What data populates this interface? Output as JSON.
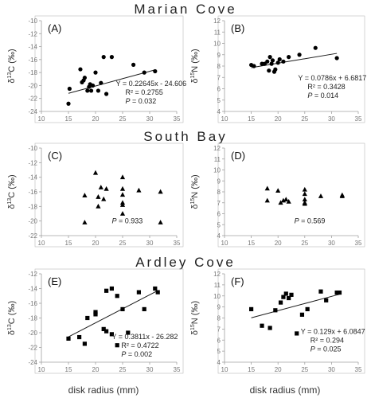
{
  "site_titles": [
    "Marian Cove",
    "South Bay",
    "Ardley Cove"
  ],
  "x_axis_label": "disk radius (mm)",
  "chart_data": [
    {
      "panel": "(A)",
      "type": "scatter",
      "site": "Marian Cove",
      "ylabel_base": "δ",
      "ylabel_sup": "13",
      "ylabel_rest": "C (‰)",
      "xlim": [
        10,
        35
      ],
      "xticks": [
        10,
        15,
        20,
        25,
        30,
        35
      ],
      "ylim": [
        -24,
        -10
      ],
      "yticks": [
        -10,
        -12,
        -14,
        -16,
        -18,
        -20,
        -22,
        -24
      ],
      "marker": "circle",
      "ylabel_visible": true,
      "xlabel_visible": false,
      "x": [
        15,
        15.2,
        17.2,
        17.5,
        17.8,
        18,
        18.5,
        18.8,
        19,
        19.2,
        19.5,
        20,
        20.5,
        21,
        21.5,
        22,
        23,
        27,
        29,
        31
      ],
      "y": [
        -22.8,
        -20.5,
        -17.5,
        -19.5,
        -19.2,
        -18.8,
        -20.8,
        -20.2,
        -19.8,
        -20.8,
        -20,
        -18,
        -20.8,
        -19.6,
        -15.6,
        -21.3,
        -15.6,
        -16.8,
        -18,
        -17.8
      ],
      "fit": {
        "slope": 0.22645,
        "intercept": -24.606
      },
      "annotations": {
        "equation": "Y = 0.22645x - 24.606",
        "r2_prefix": "R² = ",
        "r2_value": "0.2755",
        "p_prefix": "P",
        "p_rest": " = 0.032"
      }
    },
    {
      "panel": "(B)",
      "type": "scatter",
      "site": "Marian Cove",
      "ylabel_base": "δ",
      "ylabel_sup": "15",
      "ylabel_rest": "N (‰)",
      "xlim": [
        10,
        35
      ],
      "xticks": [
        10,
        15,
        20,
        25,
        30,
        35
      ],
      "ylim": [
        4,
        12
      ],
      "yticks": [
        4,
        5,
        6,
        7,
        8,
        9,
        10,
        11,
        12
      ],
      "marker": "circle",
      "ylabel_visible": true,
      "xlabel_visible": false,
      "x": [
        15,
        15.5,
        17,
        17.5,
        18,
        18.3,
        18.5,
        18.8,
        19,
        19.3,
        19.5,
        20,
        20.3,
        21,
        22,
        24,
        27,
        31
      ],
      "y": [
        8.1,
        8,
        8.2,
        8.2,
        8.4,
        7.6,
        8.8,
        8.2,
        8.5,
        7.5,
        7.7,
        8.3,
        8.6,
        8.4,
        8.8,
        9,
        9.6,
        8.7
      ],
      "fit": {
        "slope": 0.0786,
        "intercept": 6.6817
      },
      "annotations": {
        "equation": "Y = 0.0786x + 6.6817",
        "r2_prefix": "R² = ",
        "r2_value": "0.3428",
        "p_prefix": "P",
        "p_rest": " = 0.014"
      }
    },
    {
      "panel": "(C)",
      "type": "scatter",
      "site": "South Bay",
      "ylabel_base": "δ",
      "ylabel_sup": "13",
      "ylabel_rest": "C (‰)",
      "xlim": [
        10,
        35
      ],
      "xticks": [
        10,
        15,
        20,
        25,
        30,
        35
      ],
      "ylim": [
        -22,
        -10
      ],
      "yticks": [
        -10,
        -12,
        -14,
        -16,
        -18,
        -20,
        -22
      ],
      "marker": "triangle",
      "ylabel_visible": true,
      "xlabel_visible": false,
      "x": [
        18,
        18,
        20,
        20.5,
        20.5,
        21,
        21.5,
        22,
        25,
        25,
        25,
        25,
        25,
        25,
        28,
        32,
        32
      ],
      "y": [
        -16.5,
        -20.2,
        -13.4,
        -16.7,
        -18,
        -15.4,
        -17,
        -15.6,
        -14,
        -15.6,
        -16.4,
        -17.5,
        -17.8,
        -19,
        -15.8,
        -16,
        -20.2
      ],
      "fit": null,
      "annotations": {
        "equation": "",
        "r2_prefix": "",
        "r2_value": "",
        "p_prefix": "P",
        "p_rest": " = 0.933"
      }
    },
    {
      "panel": "(D)",
      "type": "scatter",
      "site": "South Bay",
      "ylabel_base": "δ",
      "ylabel_sup": "15",
      "ylabel_rest": "N (‰)",
      "xlim": [
        10,
        35
      ],
      "xticks": [
        10,
        15,
        20,
        25,
        30,
        35
      ],
      "ylim": [
        4,
        12
      ],
      "yticks": [
        4,
        5,
        6,
        7,
        8,
        9,
        10,
        11,
        12
      ],
      "marker": "triangle",
      "ylabel_visible": true,
      "xlabel_visible": false,
      "x": [
        18,
        18,
        20,
        20.5,
        21,
        21.5,
        22,
        25,
        25,
        25,
        25,
        25,
        28,
        32,
        32
      ],
      "y": [
        8.3,
        7.2,
        8.1,
        7,
        7.2,
        7.3,
        7.1,
        8.2,
        7.8,
        7.3,
        7.0,
        6.9,
        7.6,
        7.6,
        7.7
      ],
      "fit": null,
      "annotations": {
        "equation": "",
        "r2_prefix": "",
        "r2_value": "",
        "p_prefix": "P",
        "p_rest": " = 0.569"
      }
    },
    {
      "panel": "(E)",
      "type": "scatter",
      "site": "Ardley Cove",
      "ylabel_base": "δ",
      "ylabel_sup": "13",
      "ylabel_rest": "C (‰)",
      "xlim": [
        10,
        35
      ],
      "xticks": [
        10,
        15,
        20,
        25,
        30,
        35
      ],
      "ylim": [
        -24,
        -12
      ],
      "yticks": [
        -12,
        -14,
        -16,
        -18,
        -20,
        -22,
        -24
      ],
      "marker": "square",
      "ylabel_visible": true,
      "xlabel_visible": true,
      "x": [
        15,
        17,
        18,
        18.5,
        20,
        20,
        21.5,
        22,
        22,
        23,
        23,
        24,
        24,
        25,
        26,
        28,
        29,
        31,
        31.5
      ],
      "y": [
        -20.8,
        -20.6,
        -21.5,
        -18,
        -17.5,
        -17.2,
        -19.5,
        -14.3,
        -19.8,
        -14,
        -20.2,
        -15,
        -21.7,
        -16.8,
        -20,
        -14.5,
        -16.8,
        -14,
        -14.5
      ],
      "fit": {
        "slope": 0.3811,
        "intercept": -26.282
      },
      "annotations": {
        "equation": "Y = 0.3811x - 26.282",
        "r2_prefix": "R² = ",
        "r2_value": "0.4722",
        "p_prefix": "P",
        "p_rest": " = 0.002"
      }
    },
    {
      "panel": "(F)",
      "type": "scatter",
      "site": "Ardley Cove",
      "ylabel_base": "δ",
      "ylabel_sup": "15",
      "ylabel_rest": "N (‰)",
      "xlim": [
        10,
        35
      ],
      "xticks": [
        10,
        15,
        20,
        25,
        30,
        35
      ],
      "ylim": [
        4,
        12
      ],
      "yticks": [
        4,
        5,
        6,
        7,
        8,
        9,
        10,
        11,
        12
      ],
      "marker": "square",
      "ylabel_visible": true,
      "xlabel_visible": true,
      "x": [
        15,
        17,
        18.5,
        19.5,
        20.5,
        21,
        21.5,
        22,
        22.5,
        23.5,
        24.5,
        25.5,
        28,
        29,
        31,
        31.5
      ],
      "y": [
        8.8,
        7.3,
        7.1,
        8.7,
        9.4,
        9.9,
        10.2,
        9.8,
        10.1,
        6.6,
        8.3,
        8.8,
        10.4,
        9.6,
        10.3,
        10.3
      ],
      "fit": {
        "slope": 0.129,
        "intercept": 6.0847
      },
      "annotations": {
        "equation": "Y = 0.129x + 6.0847",
        "r2_prefix": "R² = ",
        "r2_value": "0.294",
        "p_prefix": "P",
        "p_rest": " = 0.025"
      }
    }
  ]
}
